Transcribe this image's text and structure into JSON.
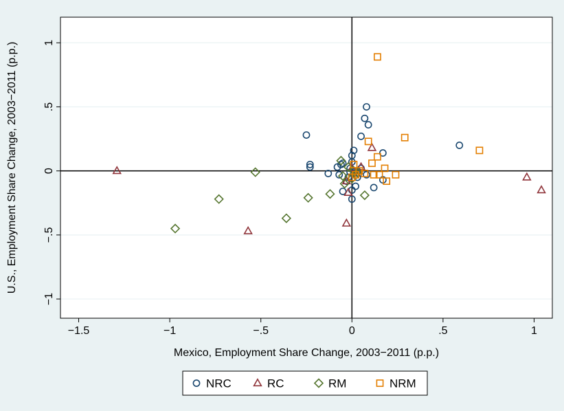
{
  "chart_data": {
    "type": "scatter",
    "title": "",
    "xlabel": "Mexico, Employment Share Change, 2003−2011 (p.p.)",
    "ylabel": "U.S., Employment Share Change, 2003−2011 (p.p.)",
    "xlim": [
      -1.6,
      1.1
    ],
    "ylim": [
      -1.15,
      1.2
    ],
    "x_ticks": [
      -1.5,
      -1,
      -0.5,
      0,
      0.5,
      1
    ],
    "x_tick_labels": [
      "−1.5",
      "−1",
      "−.5",
      "0",
      ".5",
      "1"
    ],
    "y_ticks": [
      -1,
      -0.5,
      0,
      0.5,
      1
    ],
    "y_tick_labels": [
      "−1",
      "−.5",
      "0",
      ".5",
      "1"
    ],
    "grid": "horizontal",
    "reference_lines": {
      "x": 0,
      "y": 0
    },
    "legend_position": "bottom",
    "series": [
      {
        "name": "NRC",
        "marker": "circle",
        "color": "#1a476f",
        "points": [
          [
            -0.25,
            0.28
          ],
          [
            -0.23,
            0.05
          ],
          [
            -0.23,
            0.03
          ],
          [
            -0.13,
            -0.02
          ],
          [
            -0.08,
            0.03
          ],
          [
            -0.06,
            0.05
          ],
          [
            -0.05,
            0.06
          ],
          [
            -0.07,
            -0.03
          ],
          [
            -0.05,
            -0.16
          ],
          [
            -0.03,
            -0.08
          ],
          [
            -0.02,
            -0.05
          ],
          [
            -0.01,
            0.02
          ],
          [
            0.0,
            0.12
          ],
          [
            0.01,
            0.16
          ],
          [
            0.0,
            0.07
          ],
          [
            0.0,
            -0.15
          ],
          [
            0.0,
            -0.22
          ],
          [
            0.02,
            -0.12
          ],
          [
            0.03,
            0.0
          ],
          [
            0.05,
            0.27
          ],
          [
            0.07,
            0.41
          ],
          [
            0.08,
            0.5
          ],
          [
            0.09,
            0.36
          ],
          [
            0.05,
            0.02
          ],
          [
            0.08,
            -0.03
          ],
          [
            0.12,
            -0.13
          ],
          [
            0.17,
            -0.07
          ],
          [
            0.17,
            0.14
          ],
          [
            0.59,
            0.2
          ],
          [
            0.01,
            -0.02
          ],
          [
            0.03,
            -0.05
          ],
          [
            -0.01,
            -0.01
          ]
        ]
      },
      {
        "name": "RC",
        "marker": "triangle",
        "color": "#90353b",
        "points": [
          [
            -1.29,
            0.0
          ],
          [
            -0.57,
            -0.47
          ],
          [
            -0.03,
            -0.41
          ],
          [
            -0.02,
            -0.17
          ],
          [
            -0.03,
            -0.08
          ],
          [
            0.0,
            0.02
          ],
          [
            0.02,
            -0.02
          ],
          [
            0.05,
            0.03
          ],
          [
            0.11,
            0.18
          ],
          [
            0.96,
            -0.05
          ],
          [
            1.04,
            -0.15
          ]
        ]
      },
      {
        "name": "RM",
        "marker": "diamond",
        "color": "#55752f",
        "points": [
          [
            -0.97,
            -0.45
          ],
          [
            -0.73,
            -0.22
          ],
          [
            -0.53,
            -0.01
          ],
          [
            -0.36,
            -0.37
          ],
          [
            -0.24,
            -0.21
          ],
          [
            -0.12,
            -0.18
          ],
          [
            -0.06,
            0.08
          ],
          [
            -0.05,
            -0.04
          ],
          [
            -0.04,
            -0.1
          ],
          [
            -0.02,
            0.03
          ],
          [
            0.0,
            -0.06
          ],
          [
            0.01,
            0.0
          ],
          [
            0.02,
            -0.03
          ],
          [
            0.03,
            -0.01
          ],
          [
            0.07,
            -0.19
          ]
        ]
      },
      {
        "name": "NRM",
        "marker": "square",
        "color": "#e37e00",
        "points": [
          [
            0.14,
            0.89
          ],
          [
            0.29,
            0.26
          ],
          [
            0.09,
            0.23
          ],
          [
            0.14,
            0.11
          ],
          [
            0.11,
            0.06
          ],
          [
            0.18,
            0.02
          ],
          [
            0.24,
            -0.03
          ],
          [
            0.19,
            -0.08
          ],
          [
            0.12,
            -0.03
          ],
          [
            0.07,
            -0.02
          ],
          [
            0.02,
            -0.03
          ],
          [
            0.0,
            -0.05
          ],
          [
            0.01,
            0.05
          ],
          [
            0.7,
            0.16
          ],
          [
            0.04,
            0.0
          ],
          [
            0.15,
            -0.03
          ]
        ]
      }
    ]
  }
}
